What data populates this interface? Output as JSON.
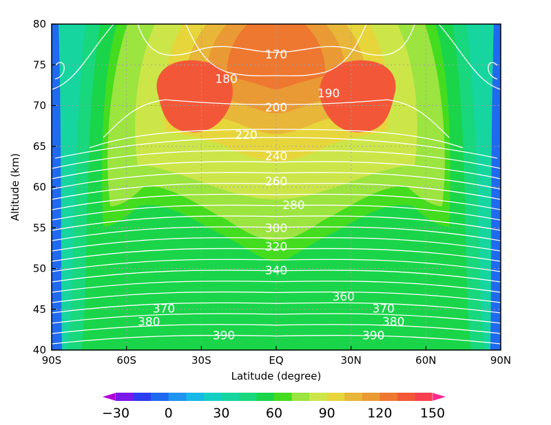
{
  "chart_data": {
    "type": "heatmap",
    "xlabel": "Latitude (degree)",
    "ylabel": "Altitude (km)",
    "xlim": [
      -90,
      90
    ],
    "ylim": [
      40,
      80
    ],
    "x_ticks": [
      {
        "value": -90,
        "label": "90S"
      },
      {
        "value": -60,
        "label": "60S"
      },
      {
        "value": -30,
        "label": "30S"
      },
      {
        "value": 0,
        "label": "EQ"
      },
      {
        "value": 30,
        "label": "30N"
      },
      {
        "value": 60,
        "label": "60N"
      },
      {
        "value": 90,
        "label": "90N"
      }
    ],
    "y_ticks": [
      {
        "value": 40,
        "label": "40"
      },
      {
        "value": 45,
        "label": "45"
      },
      {
        "value": 50,
        "label": "50"
      },
      {
        "value": 55,
        "label": "55"
      },
      {
        "value": 60,
        "label": "60"
      },
      {
        "value": 65,
        "label": "65"
      },
      {
        "value": 70,
        "label": "70"
      },
      {
        "value": 75,
        "label": "75"
      },
      {
        "value": 80,
        "label": "80"
      }
    ],
    "grid": true,
    "colorbar": {
      "levels": [
        -40,
        -30,
        -20,
        -10,
        0,
        10,
        20,
        30,
        40,
        50,
        60,
        70,
        80,
        90,
        100,
        110,
        120,
        130,
        140,
        150,
        160
      ],
      "colors": [
        "#b000d8",
        "#7a19e8",
        "#2d3cf0",
        "#1f6af0",
        "#1f94f0",
        "#16b8e8",
        "#14cfc4",
        "#16d59e",
        "#18d77c",
        "#1ad54a",
        "#44dc1e",
        "#9ce440",
        "#cce64a",
        "#e6d63c",
        "#e8b638",
        "#ea9a34",
        "#ee7830",
        "#f25838",
        "#f84050",
        "#ff2890"
      ],
      "tick_values": [
        -30,
        0,
        30,
        60,
        90,
        120,
        150
      ],
      "tick_labels": [
        "−30",
        "0",
        "30",
        "60",
        "90",
        "120",
        "150"
      ]
    },
    "contour_labels": [
      {
        "text": "170",
        "lat": 0,
        "alt": 76.3
      },
      {
        "text": "180",
        "lat": -20,
        "alt": 73.3
      },
      {
        "text": "190",
        "lat": 21,
        "alt": 71.5
      },
      {
        "text": "200",
        "lat": 0,
        "alt": 69.8
      },
      {
        "text": "220",
        "lat": -12,
        "alt": 66.4
      },
      {
        "text": "240",
        "lat": 0,
        "alt": 63.8
      },
      {
        "text": "260",
        "lat": 0,
        "alt": 60.7
      },
      {
        "text": "280",
        "lat": 7,
        "alt": 57.8
      },
      {
        "text": "300",
        "lat": 0,
        "alt": 55.0
      },
      {
        "text": "320",
        "lat": 0,
        "alt": 52.7
      },
      {
        "text": "340",
        "lat": 0,
        "alt": 49.8
      },
      {
        "text": "360",
        "lat": 27,
        "alt": 46.6
      },
      {
        "text": "370",
        "lat": -45,
        "alt": 45.1
      },
      {
        "text": "370",
        "lat": 43,
        "alt": 45.1
      },
      {
        "text": "380",
        "lat": -51,
        "alt": 43.5
      },
      {
        "text": "380",
        "lat": 47,
        "alt": 43.5
      },
      {
        "text": "390",
        "lat": -21,
        "alt": 41.8
      },
      {
        "text": "390",
        "lat": 39,
        "alt": 41.8
      }
    ]
  }
}
